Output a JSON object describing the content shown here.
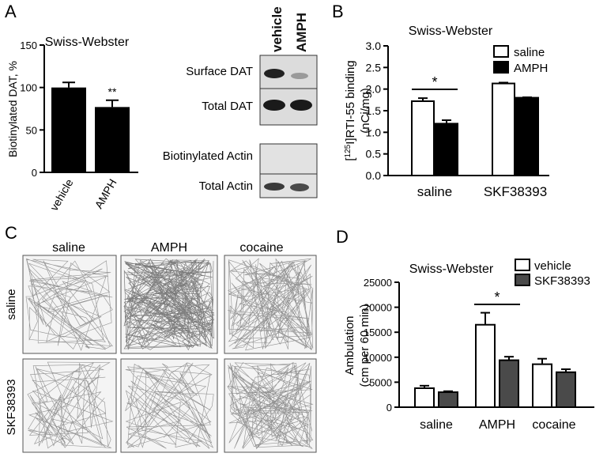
{
  "panels": {
    "A": {
      "letter": "A",
      "chart_title": "Swiss-Webster",
      "blot_labels": {
        "surface": "Surface DAT",
        "total_dat": "Total DAT",
        "biot_actin": "Biotinylated Actin",
        "total_actin": "Total Actin"
      },
      "lane_labels": [
        "vehicle",
        "AMPH"
      ]
    },
    "B": {
      "letter": "B"
    },
    "C": {
      "letter": "C",
      "col_labels": [
        "saline",
        "AMPH",
        "cocaine"
      ],
      "row_labels": [
        "saline",
        "SKF38393"
      ],
      "trace_density": [
        [
          1,
          3,
          2
        ],
        [
          1,
          1,
          2
        ]
      ]
    },
    "D": {
      "letter": "D"
    }
  },
  "chart_data": [
    {
      "id": "A",
      "type": "bar",
      "title": "Swiss-Webster",
      "ylabel": "Biotinylated DAT, %",
      "ylim": [
        0,
        150
      ],
      "yticks": [
        0,
        50,
        100,
        150
      ],
      "categories": [
        "vehicle",
        "AMPH"
      ],
      "values": [
        100,
        77
      ],
      "errors": [
        6,
        8
      ],
      "colors": [
        "#000000",
        "#000000"
      ],
      "annotations": [
        {
          "category": "AMPH",
          "text": "**"
        }
      ]
    },
    {
      "id": "B",
      "type": "bar",
      "title": "Swiss-Webster",
      "ylabel_super": "125",
      "ylabel_rest": "I]RTI-55 binding",
      "ylabel_line2": "(nCi/mg)",
      "ylim": [
        0,
        3.0
      ],
      "yticks": [
        "0.0",
        "0.5",
        "1.0",
        "1.5",
        "2.0",
        "2.5",
        "3.0"
      ],
      "categories": [
        "saline",
        "SKF38393"
      ],
      "series": [
        {
          "name": "saline",
          "color": "#ffffff",
          "values": [
            1.72,
            2.13
          ],
          "errors": [
            0.07,
            0.02
          ]
        },
        {
          "name": "AMPH",
          "color": "#000000",
          "values": [
            1.2,
            1.8
          ],
          "errors": [
            0.08,
            0.01
          ]
        }
      ],
      "significance": {
        "category": "saline",
        "text": "*"
      }
    },
    {
      "id": "D",
      "type": "bar",
      "title": "Swiss-Webster",
      "ylabel": "Ambulation",
      "ylabel_line2": "(cm per 60 min)",
      "ylim": [
        0,
        25000
      ],
      "yticks": [
        "0",
        "5000",
        "10000",
        "15000",
        "20000",
        "25000"
      ],
      "categories": [
        "saline",
        "AMPH",
        "cocaine"
      ],
      "series": [
        {
          "name": "vehicle",
          "color": "#ffffff",
          "values": [
            3800,
            16500,
            8600
          ],
          "errors": [
            500,
            2400,
            1100
          ]
        },
        {
          "name": "SKF38393",
          "color": "#4a4a4a",
          "values": [
            3000,
            9400,
            7000
          ],
          "errors": [
            200,
            700,
            600
          ]
        }
      ],
      "significance": {
        "category": "AMPH",
        "text": "*"
      }
    }
  ]
}
